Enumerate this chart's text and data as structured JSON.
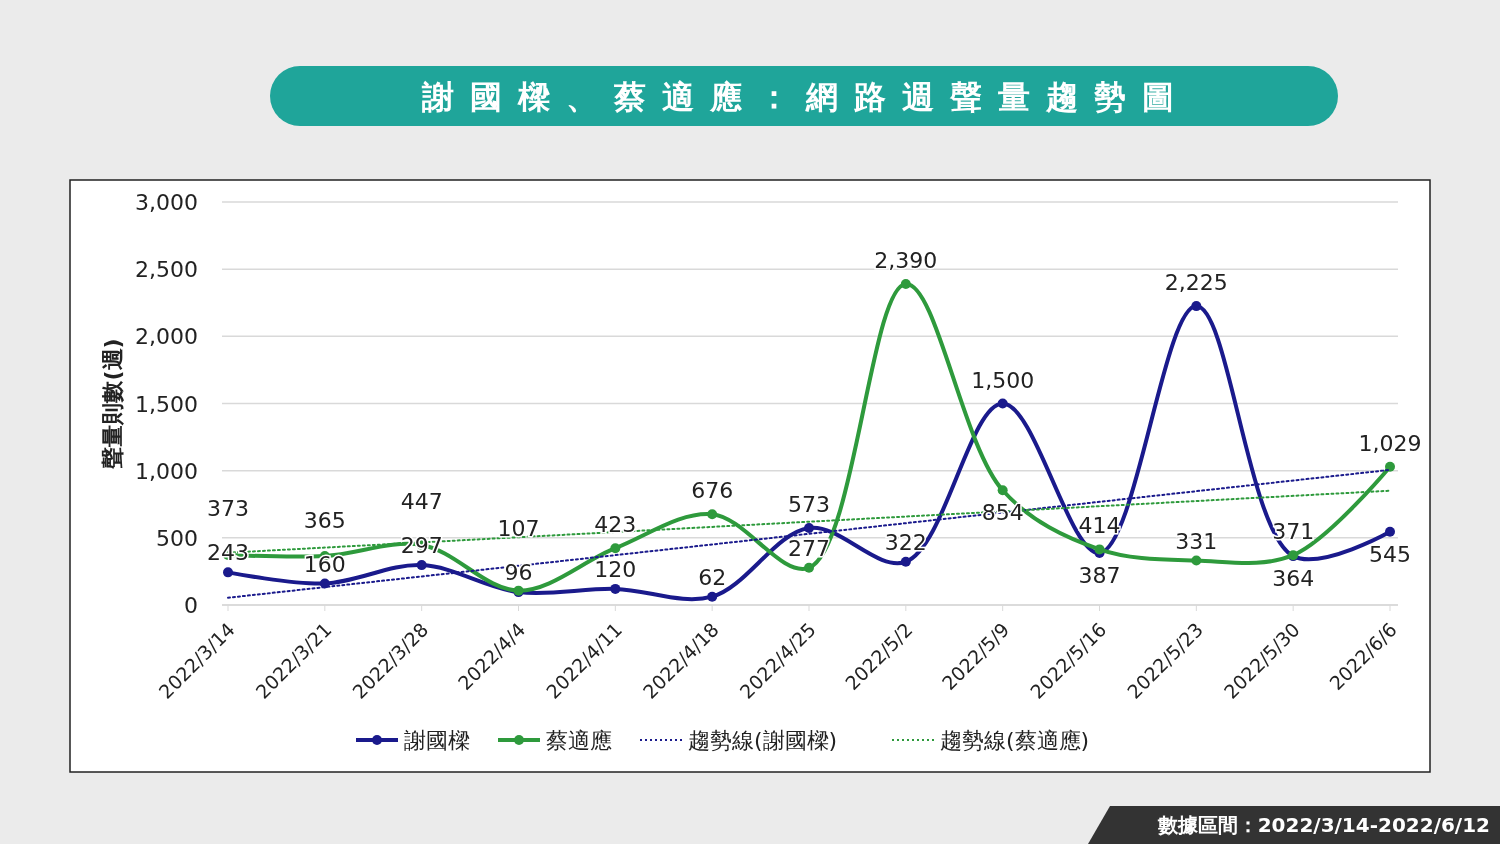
{
  "chart_data": {
    "type": "line",
    "title": "謝國樑、蔡適應：網路週聲量趨勢圖",
    "ylabel": "聲量則數(週)",
    "categories": [
      "2022/3/14",
      "2022/3/21",
      "2022/3/28",
      "2022/4/4",
      "2022/4/11",
      "2022/4/18",
      "2022/4/25",
      "2022/5/2",
      "2022/5/9",
      "2022/5/16",
      "2022/5/23",
      "2022/5/30",
      "2022/6/6"
    ],
    "series": [
      {
        "name": "謝國樑",
        "color": "#1a1a8c",
        "marker": "circle",
        "values": [
          243,
          160,
          297,
          96,
          120,
          62,
          573,
          322,
          1500,
          387,
          2225,
          364,
          545
        ],
        "value_labels": [
          "243",
          "160",
          "297",
          "96",
          "120",
          "62",
          "573",
          "322",
          "1,500",
          "387",
          "2,225",
          "364",
          "545"
        ]
      },
      {
        "name": "蔡適應",
        "color": "#2e9a3c",
        "marker": "circle",
        "values": [
          373,
          365,
          447,
          107,
          423,
          676,
          277,
          2390,
          854,
          414,
          331,
          371,
          1029
        ],
        "value_labels": [
          "373",
          "365",
          "447",
          "107",
          "423",
          "676",
          "277",
          "2,390",
          "854",
          "414",
          "331",
          "371",
          "1,029"
        ]
      },
      {
        "name": "趨勢線(謝國樑)",
        "color": "#1a1a8c",
        "marker": "none",
        "line_style": "dotted",
        "x": [
          "2022/3/14",
          "2022/6/6"
        ],
        "values": [
          54,
          1006
        ]
      },
      {
        "name": "趨勢線(蔡適應)",
        "color": "#2e9a3c",
        "marker": "none",
        "line_style": "dotted",
        "x": [
          "2022/3/14",
          "2022/6/6"
        ],
        "values": [
          389,
          851
        ]
      }
    ],
    "ylim": [
      0,
      3000
    ],
    "yticks": [
      {
        "value": 0,
        "label": "0"
      },
      {
        "value": 500,
        "label": "500"
      },
      {
        "value": 1000,
        "label": "1,000"
      },
      {
        "value": 1500,
        "label": "1,500"
      },
      {
        "value": 2000,
        "label": "2,000"
      },
      {
        "value": 2500,
        "label": "2,500"
      },
      {
        "value": 3000,
        "label": "3,000"
      }
    ],
    "grid": "y",
    "legend": "bottom",
    "annotations": [
      "數據區間：2022/3/14-2022/6/12"
    ]
  }
}
